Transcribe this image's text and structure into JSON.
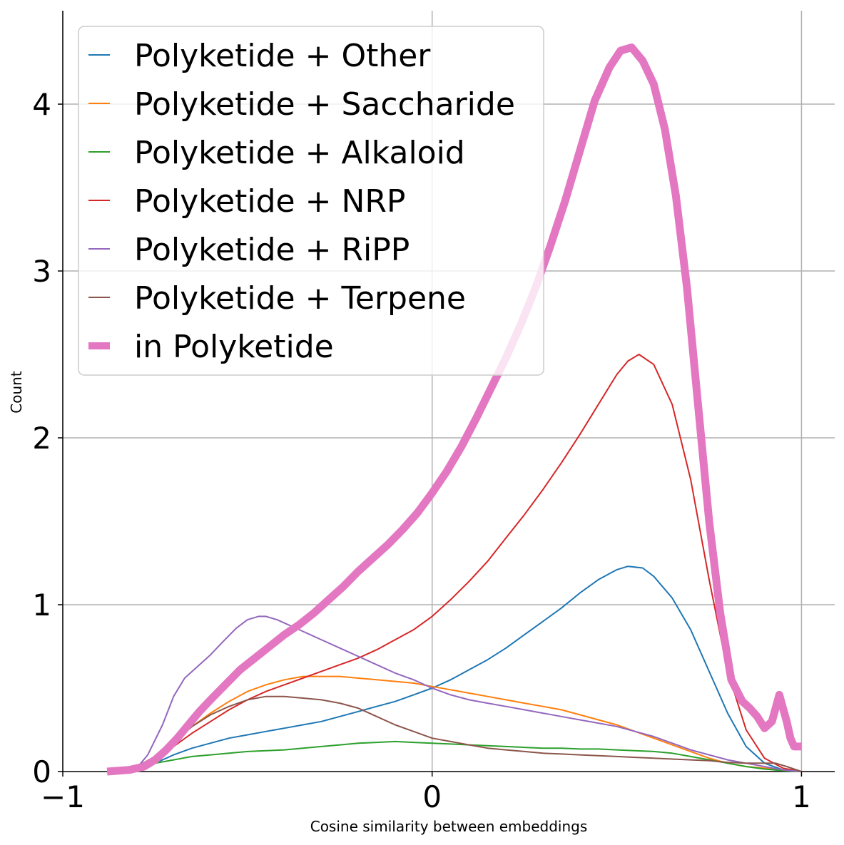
{
  "chart_data": {
    "type": "line",
    "title": "",
    "xlabel": "Cosine similarity between embeddings",
    "ylabel": "Count",
    "xlim": [
      -1.0,
      1.09
    ],
    "ylim": [
      0,
      4.56
    ],
    "xticks": [
      -1,
      0,
      1
    ],
    "xtick_labels": [
      "−1",
      "0",
      "1"
    ],
    "yticks": [
      0,
      1,
      2,
      3,
      4
    ],
    "ytick_labels": [
      "0",
      "1",
      "2",
      "3",
      "4"
    ],
    "grid": true,
    "legend_position": "top-left",
    "series": [
      {
        "name": "Polyketide + Other",
        "color": "#1f77b4",
        "width": 2,
        "x": [
          -0.88,
          -0.8,
          -0.75,
          -0.7,
          -0.65,
          -0.6,
          -0.55,
          -0.5,
          -0.45,
          -0.4,
          -0.35,
          -0.3,
          -0.25,
          -0.2,
          -0.15,
          -0.1,
          -0.05,
          0.0,
          0.05,
          0.1,
          0.15,
          0.2,
          0.25,
          0.3,
          0.35,
          0.4,
          0.45,
          0.5,
          0.53,
          0.57,
          0.6,
          0.65,
          0.7,
          0.75,
          0.8,
          0.85,
          0.9,
          0.95,
          1.0
        ],
        "y": [
          0.0,
          0.02,
          0.05,
          0.1,
          0.14,
          0.17,
          0.2,
          0.22,
          0.24,
          0.26,
          0.28,
          0.3,
          0.33,
          0.36,
          0.39,
          0.42,
          0.46,
          0.5,
          0.55,
          0.61,
          0.67,
          0.74,
          0.82,
          0.9,
          0.98,
          1.07,
          1.15,
          1.21,
          1.23,
          1.22,
          1.17,
          1.04,
          0.85,
          0.6,
          0.35,
          0.15,
          0.05,
          0.01,
          0.0
        ]
      },
      {
        "name": "Polyketide + Saccharide",
        "color": "#ff7f0e",
        "width": 2,
        "x": [
          -0.88,
          -0.8,
          -0.75,
          -0.7,
          -0.65,
          -0.6,
          -0.55,
          -0.5,
          -0.45,
          -0.4,
          -0.35,
          -0.3,
          -0.25,
          -0.2,
          -0.15,
          -0.1,
          -0.05,
          0.0,
          0.05,
          0.1,
          0.15,
          0.2,
          0.25,
          0.3,
          0.35,
          0.4,
          0.45,
          0.5,
          0.55,
          0.6,
          0.65,
          0.7,
          0.75,
          0.8,
          0.85,
          0.9,
          0.95,
          1.0
        ],
        "y": [
          0.0,
          0.03,
          0.08,
          0.17,
          0.27,
          0.35,
          0.42,
          0.48,
          0.52,
          0.55,
          0.57,
          0.57,
          0.57,
          0.56,
          0.55,
          0.54,
          0.53,
          0.51,
          0.49,
          0.47,
          0.45,
          0.43,
          0.41,
          0.39,
          0.37,
          0.34,
          0.31,
          0.28,
          0.24,
          0.2,
          0.16,
          0.12,
          0.08,
          0.05,
          0.03,
          0.02,
          0.01,
          0.0
        ]
      },
      {
        "name": "Polyketide + Alkaloid",
        "color": "#2ca02c",
        "width": 2,
        "x": [
          -0.88,
          -0.8,
          -0.75,
          -0.7,
          -0.65,
          -0.6,
          -0.55,
          -0.5,
          -0.45,
          -0.4,
          -0.35,
          -0.3,
          -0.25,
          -0.2,
          -0.15,
          -0.1,
          -0.05,
          0.0,
          0.05,
          0.1,
          0.15,
          0.2,
          0.25,
          0.3,
          0.35,
          0.4,
          0.45,
          0.5,
          0.55,
          0.6,
          0.65,
          0.7,
          0.75,
          0.8,
          0.85,
          0.9,
          0.95,
          1.0
        ],
        "y": [
          0.0,
          0.02,
          0.05,
          0.07,
          0.09,
          0.1,
          0.11,
          0.12,
          0.125,
          0.13,
          0.14,
          0.15,
          0.16,
          0.17,
          0.175,
          0.18,
          0.175,
          0.17,
          0.165,
          0.16,
          0.155,
          0.15,
          0.145,
          0.14,
          0.14,
          0.135,
          0.135,
          0.13,
          0.125,
          0.12,
          0.11,
          0.09,
          0.07,
          0.05,
          0.03,
          0.015,
          0.005,
          0.0
        ]
      },
      {
        "name": "Polyketide + NRP",
        "color": "#d62728",
        "width": 2,
        "x": [
          -0.88,
          -0.8,
          -0.75,
          -0.7,
          -0.65,
          -0.6,
          -0.55,
          -0.5,
          -0.45,
          -0.4,
          -0.35,
          -0.3,
          -0.25,
          -0.2,
          -0.15,
          -0.1,
          -0.05,
          0.0,
          0.05,
          0.1,
          0.15,
          0.2,
          0.25,
          0.3,
          0.35,
          0.4,
          0.45,
          0.5,
          0.53,
          0.56,
          0.6,
          0.65,
          0.7,
          0.75,
          0.8,
          0.85,
          0.9,
          0.95,
          1.0
        ],
        "y": [
          0.0,
          0.02,
          0.07,
          0.15,
          0.23,
          0.3,
          0.37,
          0.43,
          0.48,
          0.52,
          0.56,
          0.6,
          0.64,
          0.68,
          0.73,
          0.79,
          0.85,
          0.93,
          1.03,
          1.14,
          1.26,
          1.4,
          1.54,
          1.69,
          1.85,
          2.02,
          2.2,
          2.38,
          2.46,
          2.5,
          2.44,
          2.2,
          1.75,
          1.15,
          0.6,
          0.25,
          0.08,
          0.02,
          0.0
        ]
      },
      {
        "name": "Polyketide + RiPP",
        "color": "#9467bd",
        "width": 2,
        "x": [
          -0.88,
          -0.8,
          -0.77,
          -0.73,
          -0.7,
          -0.67,
          -0.63,
          -0.6,
          -0.57,
          -0.53,
          -0.5,
          -0.47,
          -0.45,
          -0.42,
          -0.4,
          -0.35,
          -0.3,
          -0.25,
          -0.2,
          -0.15,
          -0.1,
          -0.05,
          0.0,
          0.05,
          0.1,
          0.15,
          0.2,
          0.25,
          0.3,
          0.35,
          0.4,
          0.45,
          0.5,
          0.55,
          0.6,
          0.65,
          0.7,
          0.75,
          0.8,
          0.85,
          0.9,
          0.95,
          1.0
        ],
        "y": [
          0.0,
          0.02,
          0.1,
          0.28,
          0.45,
          0.56,
          0.64,
          0.7,
          0.77,
          0.86,
          0.91,
          0.93,
          0.93,
          0.91,
          0.89,
          0.84,
          0.79,
          0.74,
          0.69,
          0.64,
          0.59,
          0.55,
          0.5,
          0.46,
          0.43,
          0.41,
          0.39,
          0.37,
          0.35,
          0.33,
          0.31,
          0.29,
          0.27,
          0.24,
          0.21,
          0.17,
          0.13,
          0.1,
          0.07,
          0.05,
          0.03,
          0.01,
          0.0
        ]
      },
      {
        "name": "Polyketide + Terpene",
        "color": "#8c564b",
        "width": 2,
        "x": [
          -0.88,
          -0.8,
          -0.75,
          -0.7,
          -0.65,
          -0.6,
          -0.55,
          -0.5,
          -0.45,
          -0.4,
          -0.35,
          -0.3,
          -0.25,
          -0.2,
          -0.15,
          -0.1,
          -0.05,
          0.0,
          0.05,
          0.1,
          0.15,
          0.2,
          0.25,
          0.3,
          0.35,
          0.4,
          0.45,
          0.5,
          0.55,
          0.6,
          0.65,
          0.7,
          0.75,
          0.8,
          0.85,
          0.9,
          0.93,
          0.96,
          1.0
        ],
        "y": [
          0.0,
          0.03,
          0.09,
          0.18,
          0.27,
          0.34,
          0.39,
          0.43,
          0.45,
          0.45,
          0.44,
          0.43,
          0.41,
          0.38,
          0.33,
          0.28,
          0.24,
          0.2,
          0.18,
          0.16,
          0.14,
          0.13,
          0.12,
          0.11,
          0.105,
          0.1,
          0.095,
          0.09,
          0.085,
          0.08,
          0.075,
          0.07,
          0.065,
          0.055,
          0.05,
          0.05,
          0.05,
          0.03,
          0.0
        ]
      },
      {
        "name": "in Polyketide",
        "color": "#e377c2",
        "width": 11,
        "x": [
          -0.88,
          -0.82,
          -0.78,
          -0.75,
          -0.72,
          -0.69,
          -0.66,
          -0.63,
          -0.6,
          -0.56,
          -0.52,
          -0.48,
          -0.44,
          -0.4,
          -0.36,
          -0.32,
          -0.28,
          -0.24,
          -0.2,
          -0.16,
          -0.12,
          -0.08,
          -0.04,
          0.0,
          0.04,
          0.08,
          0.12,
          0.16,
          0.2,
          0.24,
          0.28,
          0.32,
          0.36,
          0.4,
          0.44,
          0.48,
          0.51,
          0.54,
          0.57,
          0.6,
          0.63,
          0.66,
          0.69,
          0.72,
          0.75,
          0.78,
          0.81,
          0.84,
          0.86,
          0.88,
          0.9,
          0.92,
          0.94,
          0.96,
          0.97,
          0.98,
          0.99,
          1.0
        ],
        "y": [
          0.0,
          0.01,
          0.03,
          0.07,
          0.13,
          0.2,
          0.28,
          0.36,
          0.43,
          0.52,
          0.61,
          0.68,
          0.75,
          0.82,
          0.88,
          0.95,
          1.03,
          1.11,
          1.2,
          1.28,
          1.36,
          1.45,
          1.55,
          1.67,
          1.8,
          1.95,
          2.12,
          2.3,
          2.48,
          2.68,
          2.9,
          3.15,
          3.42,
          3.72,
          4.02,
          4.22,
          4.32,
          4.34,
          4.26,
          4.12,
          3.85,
          3.45,
          2.9,
          2.2,
          1.5,
          0.95,
          0.55,
          0.42,
          0.38,
          0.33,
          0.26,
          0.3,
          0.46,
          0.3,
          0.2,
          0.15,
          0.15,
          0.15
        ]
      }
    ]
  }
}
